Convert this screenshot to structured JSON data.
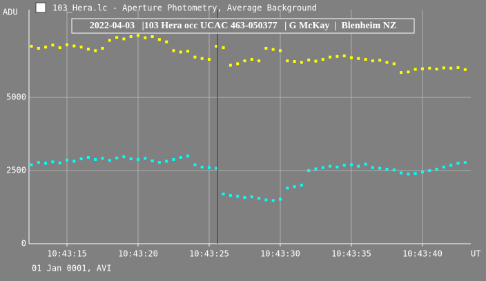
{
  "window_title": "103_Hera.lc - Aperture Photometry, Average Background",
  "chart_data": {
    "type": "scatter",
    "title": "2022-04-03   |103 Hera occ UCAC 463-050377   | G McKay  |  Blenheim NZ",
    "y_label": "ADU",
    "x_label": "UT",
    "footer": "01 Jan 0001, AVI",
    "x": [
      38592.5,
      38593,
      38593.5,
      38594,
      38594.5,
      38595,
      38595.5,
      38596,
      38596.5,
      38597,
      38597.5,
      38598,
      38598.5,
      38599,
      38599.5,
      38600,
      38600.5,
      38601,
      38601.5,
      38602,
      38602.5,
      38603,
      38603.5,
      38604,
      38604.5,
      38605,
      38605.5,
      38606,
      38606.5,
      38607,
      38607.5,
      38608,
      38608.5,
      38609,
      38609.5,
      38610,
      38610.5,
      38611,
      38611.5,
      38612,
      38612.5,
      38613,
      38613.5,
      38614,
      38614.5,
      38615,
      38615.5,
      38616,
      38616.5,
      38617,
      38617.5,
      38618,
      38618.5,
      38619,
      38619.5,
      38620,
      38620.5,
      38621,
      38621.5,
      38622,
      38622.5,
      38623
    ],
    "series": [
      {
        "color": "#ffff00",
        "values": [
          6750,
          6680,
          6720,
          6790,
          6700,
          6800,
          6760,
          6720,
          6650,
          6600,
          6680,
          6950,
          7050,
          7000,
          7080,
          7120,
          7040,
          7080,
          6980,
          6900,
          6600,
          6550,
          6580,
          6380,
          6330,
          6300,
          6750,
          6700,
          6100,
          6150,
          6250,
          6300,
          6250,
          6680,
          6640,
          6600,
          6250,
          6230,
          6200,
          6280,
          6240,
          6300,
          6380,
          6400,
          6420,
          6360,
          6330,
          6300,
          6250,
          6270,
          6200,
          6150,
          5850,
          5870,
          5960,
          5980,
          6000,
          5970,
          6010,
          6000,
          6020,
          5950
        ]
      },
      {
        "color": "#00ffff",
        "values": [
          2700,
          2780,
          2750,
          2800,
          2760,
          2860,
          2820,
          2900,
          2950,
          2880,
          2920,
          2850,
          2930,
          2970,
          2900,
          2880,
          2920,
          2830,
          2780,
          2820,
          2880,
          2950,
          3000,
          2700,
          2620,
          2600,
          2580,
          1700,
          1650,
          1620,
          1580,
          1600,
          1550,
          1500,
          1480,
          1520,
          1900,
          1950,
          2000,
          2500,
          2560,
          2600,
          2650,
          2620,
          2680,
          2700,
          2650,
          2720,
          2600,
          2580,
          2550,
          2520,
          2420,
          2380,
          2400,
          2450,
          2500,
          2550,
          2620,
          2680,
          2750,
          2780
        ]
      }
    ],
    "xlim": [
      38592.33,
      38623.4
    ],
    "ylim": [
      0,
      8000
    ],
    "xticks": [
      {
        "value": 38595,
        "label": "10:43:15"
      },
      {
        "value": 38600,
        "label": "10:43:20"
      },
      {
        "value": 38605,
        "label": "10:43:25"
      },
      {
        "value": 38610,
        "label": "10:43:30"
      },
      {
        "value": 38615,
        "label": "10:43:35"
      },
      {
        "value": 38620,
        "label": "10:43:40"
      }
    ],
    "yticks": [
      0,
      2500,
      5000
    ],
    "grid": true,
    "cursor": {
      "x": 38605.6,
      "color": "#e00000"
    }
  }
}
